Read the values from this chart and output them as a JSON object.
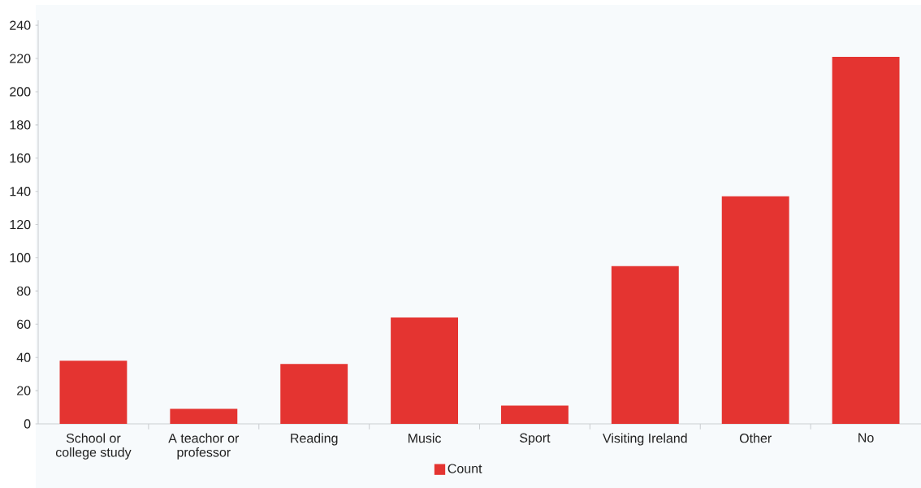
{
  "chart_data": {
    "type": "bar",
    "categories": [
      "School or college study",
      "A teachor or professor",
      "Reading",
      "Music",
      "Sport",
      "Visiting Ireland",
      "Other",
      "No"
    ],
    "series": [
      {
        "name": "Count",
        "color": "#e43431",
        "values": [
          38,
          9,
          36,
          64,
          11,
          95,
          137,
          221
        ]
      }
    ],
    "ylim": [
      0,
      243
    ],
    "yticks": [
      0,
      20,
      40,
      60,
      80,
      100,
      120,
      140,
      160,
      180,
      200,
      220,
      240
    ],
    "legend": "bottom"
  }
}
